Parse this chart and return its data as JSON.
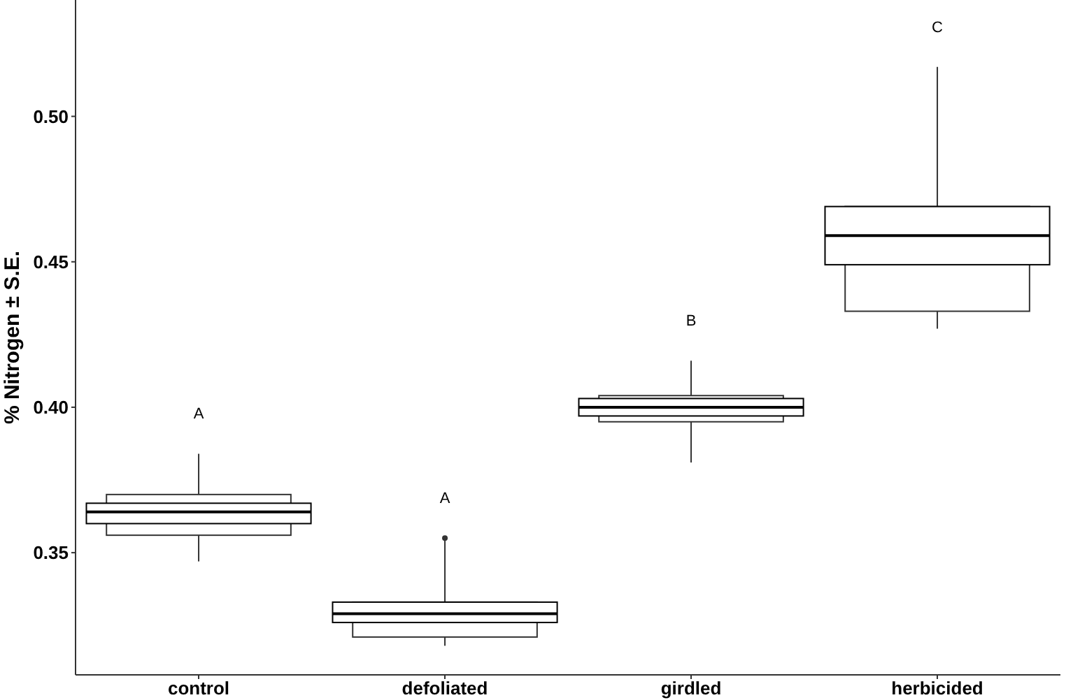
{
  "chart_data": {
    "type": "box",
    "ylabel": "% Nitrogen ± S.E.",
    "categories": [
      "control",
      "defoliated",
      "girdled",
      "herbicided"
    ],
    "ylim": [
      0.308,
      0.54
    ],
    "yticks": [
      {
        "value": 0.35,
        "label": "0.35"
      },
      {
        "value": 0.4,
        "label": "0.40"
      },
      {
        "value": 0.45,
        "label": "0.45"
      },
      {
        "value": 0.5,
        "label": "0.50"
      }
    ],
    "grid": false,
    "series": [
      {
        "color": "#333333",
        "boxes": [
          {
            "low": 0.347,
            "q1": 0.356,
            "median": 0.364,
            "q3": 0.37,
            "high": 0.384
          },
          {
            "low": 0.318,
            "q1": 0.321,
            "median": 0.329,
            "q3": 0.333,
            "high": 0.355,
            "outliers": [
              0.355
            ]
          },
          {
            "low": 0.381,
            "q1": 0.395,
            "median": 0.4,
            "q3": 0.404,
            "high": 0.416
          },
          {
            "low": 0.427,
            "q1": 0.433,
            "median": 0.459,
            "q3": 0.469,
            "high": 0.517
          }
        ]
      },
      {
        "color": "#000000",
        "boxes": [
          {
            "low": 0.36,
            "q1": 0.36,
            "median": 0.364,
            "q3": 0.367,
            "high": 0.367
          },
          {
            "low": 0.326,
            "q1": 0.326,
            "median": 0.329,
            "q3": 0.333,
            "high": 0.333
          },
          {
            "low": 0.397,
            "q1": 0.397,
            "median": 0.4,
            "q3": 0.403,
            "high": 0.403
          },
          {
            "low": 0.449,
            "q1": 0.449,
            "median": 0.459,
            "q3": 0.469,
            "high": 0.469
          }
        ]
      }
    ],
    "annotations": [
      "A",
      "A",
      "B",
      "C"
    ]
  }
}
